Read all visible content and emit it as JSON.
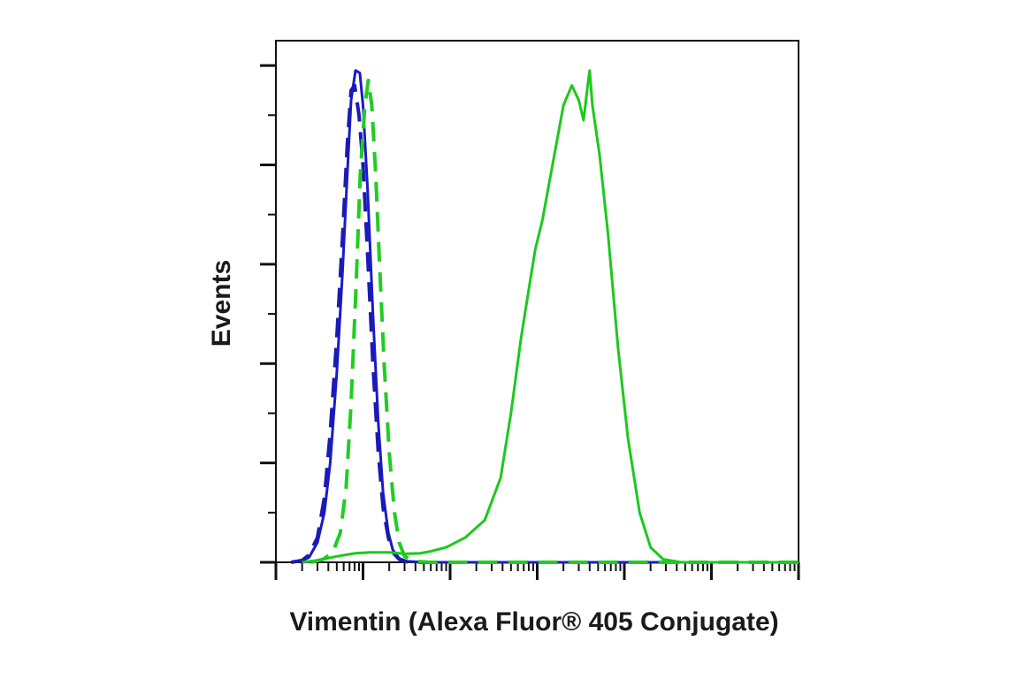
{
  "chart_data": {
    "type": "line",
    "title": "",
    "xlabel": "Vimentin (Alexa Fluor® 405 Conjugate)",
    "ylabel": "Events",
    "x_scale": "log",
    "xlim": [
      1,
      1000000
    ],
    "ylim": [
      0,
      1.05
    ],
    "x_tick_labels": [],
    "y_tick_labels": [],
    "grid": false,
    "legend": "none",
    "series": [
      {
        "color": "#1a1ac8",
        "dash": "solid",
        "points": [
          [
            1.5,
            0
          ],
          [
            2,
            0.003
          ],
          [
            2.4,
            0.01
          ],
          [
            3,
            0.04
          ],
          [
            3.6,
            0.1
          ],
          [
            4.2,
            0.2
          ],
          [
            5,
            0.38
          ],
          [
            5.8,
            0.58
          ],
          [
            6.6,
            0.78
          ],
          [
            7.3,
            0.93
          ],
          [
            8.2,
            0.99
          ],
          [
            9.2,
            0.985
          ],
          [
            10,
            0.92
          ],
          [
            11.3,
            0.75
          ],
          [
            13,
            0.5
          ],
          [
            15,
            0.28
          ],
          [
            17,
            0.14
          ],
          [
            19.5,
            0.06
          ],
          [
            22,
            0.025
          ],
          [
            26,
            0.008
          ],
          [
            32,
            0.002
          ],
          [
            50,
            0
          ],
          [
            1000000,
            0
          ]
        ]
      },
      {
        "color": "#1a1ab4",
        "dash": "dashed",
        "points": [
          [
            1.5,
            0
          ],
          [
            2,
            0.004
          ],
          [
            2.4,
            0.015
          ],
          [
            3,
            0.05
          ],
          [
            3.6,
            0.13
          ],
          [
            4.2,
            0.26
          ],
          [
            5,
            0.45
          ],
          [
            5.8,
            0.65
          ],
          [
            6.6,
            0.84
          ],
          [
            7.3,
            0.95
          ],
          [
            8,
            0.96
          ],
          [
            9,
            0.9
          ],
          [
            10,
            0.8
          ],
          [
            11.3,
            0.62
          ],
          [
            13,
            0.4
          ],
          [
            15,
            0.22
          ],
          [
            17,
            0.11
          ],
          [
            19.5,
            0.05
          ],
          [
            22,
            0.02
          ],
          [
            26,
            0.006
          ],
          [
            32,
            0.001
          ],
          [
            50,
            0
          ],
          [
            1000000,
            0
          ]
        ]
      },
      {
        "color": "#22cc22",
        "dash": "dashed",
        "points": [
          [
            2.5,
            0
          ],
          [
            3.5,
            0.006
          ],
          [
            4.5,
            0.02
          ],
          [
            5.5,
            0.06
          ],
          [
            6.4,
            0.15
          ],
          [
            7.3,
            0.32
          ],
          [
            8.3,
            0.55
          ],
          [
            9.3,
            0.78
          ],
          [
            10.5,
            0.92
          ],
          [
            11.5,
            0.97
          ],
          [
            12.6,
            0.92
          ],
          [
            14,
            0.78
          ],
          [
            15.5,
            0.6
          ],
          [
            17.5,
            0.4
          ],
          [
            20,
            0.22
          ],
          [
            23,
            0.1
          ],
          [
            26,
            0.04
          ],
          [
            30,
            0.012
          ],
          [
            40,
            0.002
          ],
          [
            60,
            0
          ],
          [
            1000000,
            0
          ]
        ]
      },
      {
        "color": "#1ec81e",
        "dash": "solid",
        "points": [
          [
            2,
            0
          ],
          [
            3,
            0.004
          ],
          [
            5,
            0.012
          ],
          [
            8,
            0.018
          ],
          [
            12,
            0.02
          ],
          [
            20,
            0.02
          ],
          [
            30,
            0.017
          ],
          [
            45,
            0.018
          ],
          [
            60,
            0.022
          ],
          [
            90,
            0.03
          ],
          [
            150,
            0.05
          ],
          [
            250,
            0.085
          ],
          [
            380,
            0.17
          ],
          [
            500,
            0.3
          ],
          [
            650,
            0.45
          ],
          [
            800,
            0.55
          ],
          [
            950,
            0.63
          ],
          [
            1150,
            0.69
          ],
          [
            1500,
            0.8
          ],
          [
            2000,
            0.92
          ],
          [
            2500,
            0.96
          ],
          [
            3000,
            0.93
          ],
          [
            3400,
            0.89
          ],
          [
            3800,
            0.96
          ],
          [
            4000,
            0.99
          ],
          [
            4300,
            0.92
          ],
          [
            5200,
            0.82
          ],
          [
            6500,
            0.66
          ],
          [
            8500,
            0.43
          ],
          [
            11000,
            0.25
          ],
          [
            15000,
            0.1
          ],
          [
            20000,
            0.03
          ],
          [
            28000,
            0.006
          ],
          [
            45000,
            0
          ],
          [
            1000000,
            0
          ]
        ]
      }
    ]
  }
}
